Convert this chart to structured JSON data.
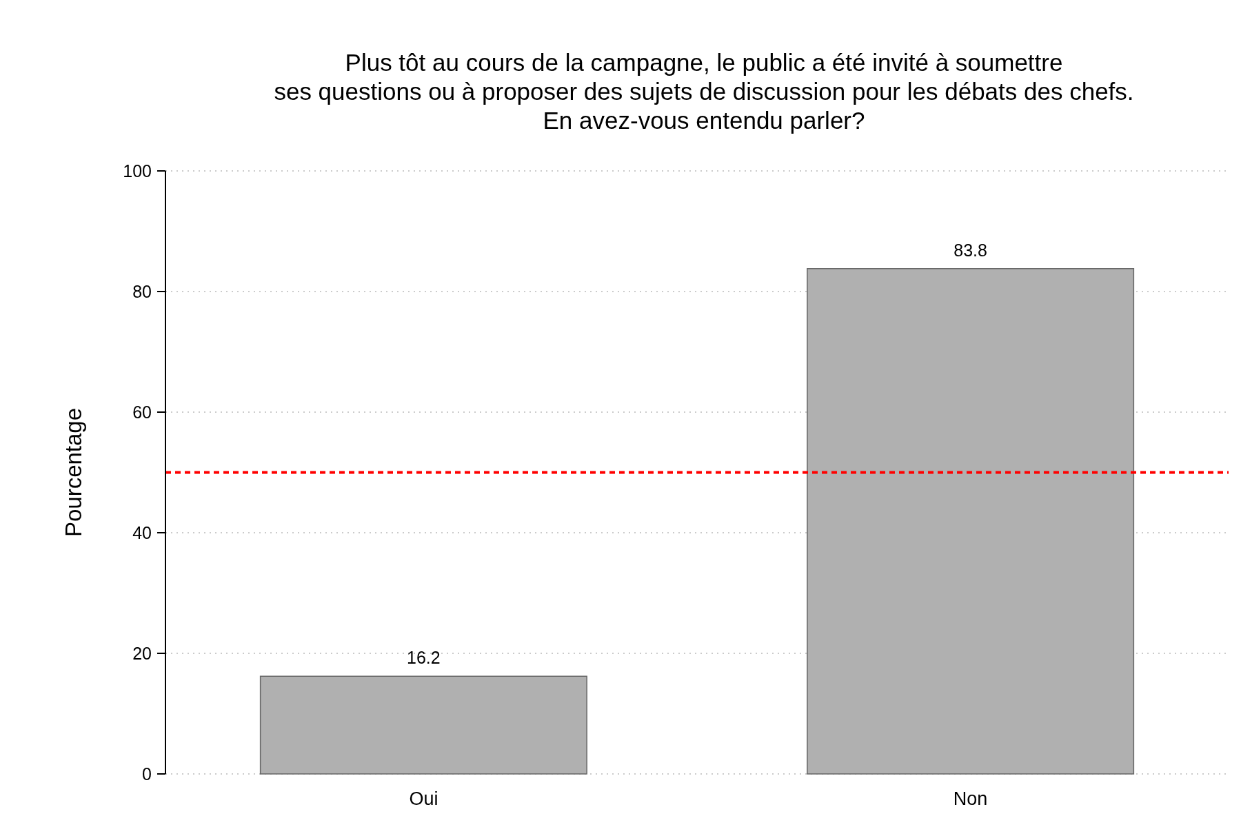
{
  "chart_data": {
    "type": "bar",
    "title": "Plus tôt au cours de la campagne, le public a été invité à soumettre\nses questions ou à proposer des sujets de discussion pour les débats des chefs.\nEn avez-vous entendu parler?",
    "ylabel": "Pourcentage",
    "categories": [
      "Oui",
      "Non"
    ],
    "values": [
      16.2,
      83.8
    ],
    "color": "#b0b0b0",
    "ylim": [
      0,
      100
    ],
    "yticks": [
      0,
      20,
      40,
      60,
      80,
      100
    ],
    "grid": "y",
    "data_labels": true,
    "ref_lines": [
      {
        "axis": "y",
        "value": 50,
        "color": "#ff0000",
        "line_style": "dashed"
      }
    ]
  }
}
